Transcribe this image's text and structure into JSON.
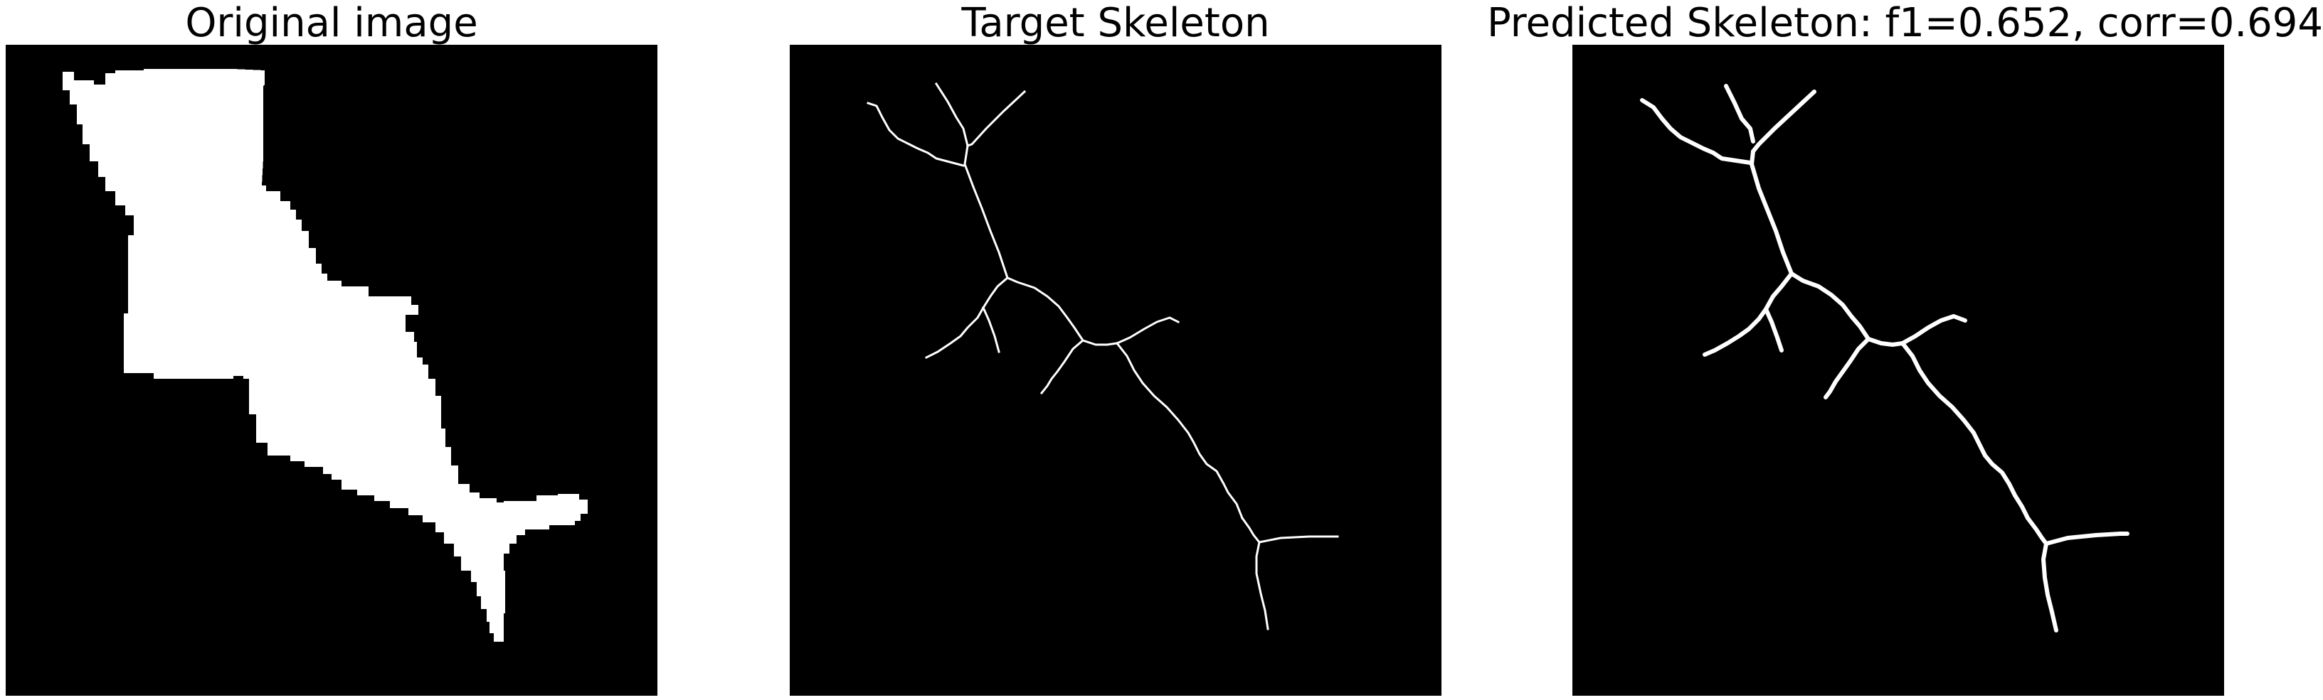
{
  "panels": [
    {
      "title": "Original image"
    },
    {
      "title": "Target Skeleton"
    },
    {
      "title": "Predicted Skeleton: f1=0.652, corr=0.694"
    }
  ],
  "colors": {
    "background": "#ffffff",
    "canvas": "#000000",
    "foreground": "#ffffff"
  }
}
